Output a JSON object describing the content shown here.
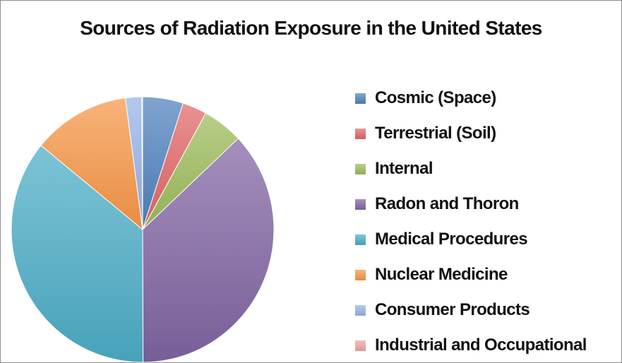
{
  "chart_data": {
    "type": "pie",
    "title": "Sources of Radiation Exposure in the United States",
    "legend_position": "right",
    "start_angle_deg": 0,
    "direction": "clockwise",
    "slices": [
      {
        "label": "Cosmic (Space)",
        "value": 5,
        "color": "#4f81bd"
      },
      {
        "label": "Terrestrial (Soil)",
        "value": 3,
        "color": "#e06666"
      },
      {
        "label": "Internal",
        "value": 5,
        "color": "#9bbb59"
      },
      {
        "label": "Radon and Thoron",
        "value": 37,
        "color": "#8064a2"
      },
      {
        "label": "Medical Procedures",
        "value": 36,
        "color": "#4bacc6"
      },
      {
        "label": "Nuclear Medicine",
        "value": 12,
        "color": "#f79646"
      },
      {
        "label": "Consumer Products",
        "value": 2,
        "color": "#95b3e6"
      },
      {
        "label": "Industrial and Occupational",
        "value": 0.1,
        "color": "#f2a2a2"
      }
    ]
  }
}
